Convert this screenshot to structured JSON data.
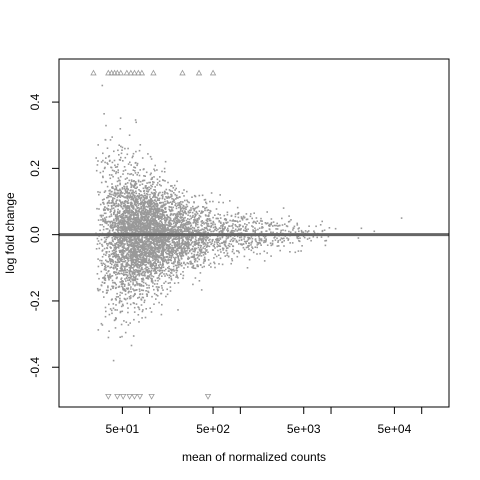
{
  "chart_data": {
    "type": "scatter",
    "title": "",
    "xlabel": "mean of normalized counts",
    "ylabel": "log fold change",
    "x_scale": "log10",
    "xlim": [
      10,
      200000
    ],
    "ylim": [
      -0.52,
      0.53
    ],
    "x_ticks": [
      {
        "value": 50,
        "label": "5e+01"
      },
      {
        "value": 100,
        "label": ""
      },
      {
        "value": 500,
        "label": "5e+02"
      },
      {
        "value": 1000,
        "label": ""
      },
      {
        "value": 5000,
        "label": "5e+03"
      },
      {
        "value": 10000,
        "label": ""
      },
      {
        "value": 50000,
        "label": "5e+04"
      },
      {
        "value": 100000,
        "label": ""
      }
    ],
    "y_ticks": [
      {
        "value": -0.4,
        "label": "-0.4"
      },
      {
        "value": -0.2,
        "label": "-0.2"
      },
      {
        "value": 0.0,
        "label": "0.0"
      },
      {
        "value": 0.2,
        "label": "0.2"
      },
      {
        "value": 0.4,
        "label": "0.4"
      }
    ],
    "reference_line": {
      "y": 0,
      "color": "#666666"
    },
    "point_color": "#999999",
    "grid": false,
    "legend": "none",
    "sample_points": [
      {
        "x": 30,
        "y": 0.45
      },
      {
        "x": 40,
        "y": -0.38
      },
      {
        "x": 60,
        "y": 0.3
      },
      {
        "x": 90,
        "y": -0.25
      },
      {
        "x": 150,
        "y": 0.22
      },
      {
        "x": 300,
        "y": -0.15
      },
      {
        "x": 600,
        "y": 0.12
      },
      {
        "x": 1200,
        "y": -0.1
      },
      {
        "x": 3000,
        "y": 0.08
      },
      {
        "x": 8000,
        "y": 0.04
      },
      {
        "x": 30000,
        "y": 0.01
      },
      {
        "x": 60000,
        "y": 0.05
      }
    ],
    "capped_points_top": [
      {
        "x": 24,
        "y": 0.488
      },
      {
        "x": 35,
        "y": 0.488
      },
      {
        "x": 38,
        "y": 0.488
      },
      {
        "x": 41,
        "y": 0.488
      },
      {
        "x": 44,
        "y": 0.488
      },
      {
        "x": 48,
        "y": 0.488
      },
      {
        "x": 56,
        "y": 0.488
      },
      {
        "x": 62,
        "y": 0.488
      },
      {
        "x": 68,
        "y": 0.488
      },
      {
        "x": 75,
        "y": 0.488
      },
      {
        "x": 82,
        "y": 0.488
      },
      {
        "x": 110,
        "y": 0.488
      },
      {
        "x": 230,
        "y": 0.488
      },
      {
        "x": 350,
        "y": 0.488
      },
      {
        "x": 500,
        "y": 0.488
      }
    ],
    "capped_points_bottom": [
      {
        "x": 35,
        "y": -0.488
      },
      {
        "x": 44,
        "y": -0.488
      },
      {
        "x": 51,
        "y": -0.488
      },
      {
        "x": 60,
        "y": -0.488
      },
      {
        "x": 68,
        "y": -0.488
      },
      {
        "x": 78,
        "y": -0.488
      },
      {
        "x": 105,
        "y": -0.488
      },
      {
        "x": 440,
        "y": -0.488
      }
    ]
  }
}
